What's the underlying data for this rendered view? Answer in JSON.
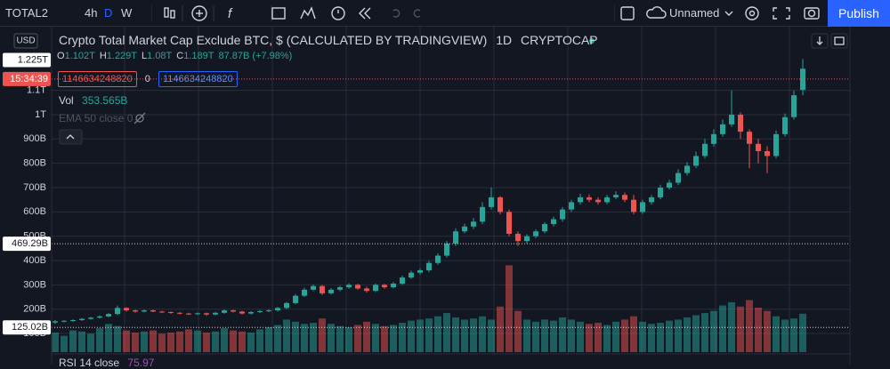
{
  "toolbar": {
    "symbol": "TOTAL2",
    "intervals": [
      "4h",
      "D",
      "W"
    ],
    "layout_name": "Unnamed",
    "publish": "Publish"
  },
  "legend": {
    "title": "Crypto Total Market Cap Exclude BTC, $ (CALCULATED BY TRADINGVIEW)",
    "interval": "1D",
    "exchange": "CRYPTOCAP",
    "ohlc": [
      {
        "key": "O",
        "value": "1.102T"
      },
      {
        "key": "H",
        "value": "1.229T"
      },
      {
        "key": "L",
        "value": "1.08T"
      },
      {
        "key": "C",
        "value": "1.189T"
      }
    ],
    "change": "87.87B (+7.98%)",
    "sell_price": "1146634248820",
    "spread": "0",
    "buy_price": "1146634248820",
    "volume_label": "Vol",
    "volume_value": "353.565B",
    "ema": "EMA 50 close 0",
    "rsi_label": "RSI 14 close",
    "rsi_value": "75.97"
  },
  "axis_badges": {
    "currency": "USD",
    "countdown": "15:34:39"
  },
  "chart_data": {
    "type": "candlestick",
    "grid": true,
    "up_color": "#26a69a",
    "down_color": "#ef5350",
    "ylim": [
      16,
      1362
    ],
    "yticks": [
      {
        "value": 100,
        "label": "100B"
      },
      {
        "value": 200,
        "label": "200B"
      },
      {
        "value": 300,
        "label": "300B"
      },
      {
        "value": 400,
        "label": "400B"
      },
      {
        "value": 500,
        "label": "500B"
      },
      {
        "value": 600,
        "label": "600B"
      },
      {
        "value": 700,
        "label": "700B"
      },
      {
        "value": 800,
        "label": "800B"
      },
      {
        "value": 900,
        "label": "900B"
      },
      {
        "value": 1000,
        "label": "1T"
      },
      {
        "value": 1100,
        "label": "1.1T"
      }
    ],
    "price_lines": [
      {
        "value": 1225,
        "label": "1.225T"
      },
      {
        "value": 469.29,
        "label": "469.29B"
      },
      {
        "value": 125.02,
        "label": "125.02B"
      }
    ],
    "last_price": 1146.63424882,
    "open": [
      145,
      150,
      152,
      155,
      160,
      165,
      170,
      180,
      205,
      195,
      190,
      195,
      190,
      188,
      185,
      182,
      180,
      183,
      178,
      185,
      195,
      190,
      182,
      188,
      192,
      195,
      205,
      225,
      255,
      280,
      295,
      265,
      280,
      290,
      300,
      285,
      275,
      300,
      290,
      305,
      330,
      350,
      360,
      390,
      420,
      470,
      520,
      540,
      560,
      620,
      660,
      600,
      510,
      480,
      500,
      520,
      550,
      570,
      610,
      640,
      660,
      650,
      640,
      660,
      670,
      650,
      600,
      640,
      660,
      700,
      720,
      760,
      790,
      830,
      880,
      920,
      960,
      1000,
      930,
      880,
      850,
      830,
      920,
      990,
      1102
    ],
    "high": [
      155,
      156,
      158,
      163,
      168,
      174,
      184,
      215,
      208,
      198,
      199,
      198,
      193,
      191,
      188,
      185,
      186,
      186,
      189,
      199,
      198,
      193,
      192,
      196,
      199,
      209,
      230,
      262,
      288,
      302,
      300,
      286,
      296,
      306,
      304,
      292,
      306,
      304,
      312,
      338,
      358,
      368,
      398,
      430,
      480,
      532,
      552,
      575,
      640,
      700,
      665,
      610,
      520,
      508,
      528,
      558,
      580,
      620,
      650,
      675,
      672,
      660,
      670,
      685,
      680,
      670,
      650,
      670,
      712,
      732,
      775,
      805,
      848,
      900,
      940,
      980,
      1100,
      1010,
      940,
      900,
      870,
      935,
      1005,
      1100,
      1229
    ],
    "low": [
      140,
      146,
      148,
      152,
      157,
      162,
      167,
      176,
      190,
      186,
      187,
      188,
      184,
      181,
      178,
      176,
      176,
      172,
      174,
      181,
      186,
      178,
      178,
      184,
      188,
      190,
      200,
      220,
      250,
      274,
      258,
      260,
      274,
      284,
      280,
      268,
      270,
      284,
      286,
      300,
      324,
      342,
      352,
      382,
      412,
      460,
      512,
      530,
      550,
      610,
      590,
      500,
      460,
      470,
      492,
      512,
      540,
      560,
      600,
      630,
      640,
      630,
      632,
      652,
      640,
      590,
      592,
      630,
      652,
      692,
      710,
      750,
      780,
      820,
      868,
      910,
      950,
      900,
      780,
      800,
      760,
      820,
      910,
      980,
      1080
    ],
    "close": [
      150,
      152,
      155,
      160,
      165,
      170,
      180,
      205,
      195,
      190,
      195,
      190,
      188,
      185,
      182,
      180,
      183,
      178,
      185,
      195,
      190,
      182,
      188,
      192,
      195,
      205,
      225,
      255,
      280,
      295,
      265,
      280,
      290,
      300,
      285,
      275,
      300,
      290,
      305,
      330,
      350,
      360,
      390,
      420,
      470,
      520,
      540,
      560,
      620,
      660,
      600,
      510,
      480,
      500,
      520,
      550,
      570,
      610,
      640,
      660,
      650,
      640,
      660,
      670,
      650,
      600,
      640,
      660,
      700,
      720,
      760,
      790,
      830,
      880,
      920,
      960,
      1000,
      930,
      880,
      850,
      830,
      920,
      990,
      1080,
      1189
    ],
    "volume_ylim": [
      0,
      3000
    ],
    "volume": [
      180,
      150,
      200,
      190,
      170,
      220,
      260,
      240,
      200,
      180,
      190,
      200,
      170,
      180,
      190,
      210,
      200,
      180,
      190,
      220,
      200,
      190,
      180,
      210,
      230,
      250,
      300,
      280,
      260,
      270,
      310,
      260,
      240,
      230,
      250,
      280,
      260,
      240,
      250,
      270,
      290,
      300,
      310,
      330,
      360,
      320,
      300,
      310,
      330,
      300,
      420,
      800,
      380,
      300,
      280,
      300,
      290,
      320,
      300,
      280,
      260,
      270,
      250,
      280,
      300,
      330,
      280,
      260,
      270,
      290,
      300,
      320,
      340,
      360,
      380,
      430,
      460,
      420,
      480,
      410,
      380,
      330,
      300,
      310,
      354
    ]
  }
}
